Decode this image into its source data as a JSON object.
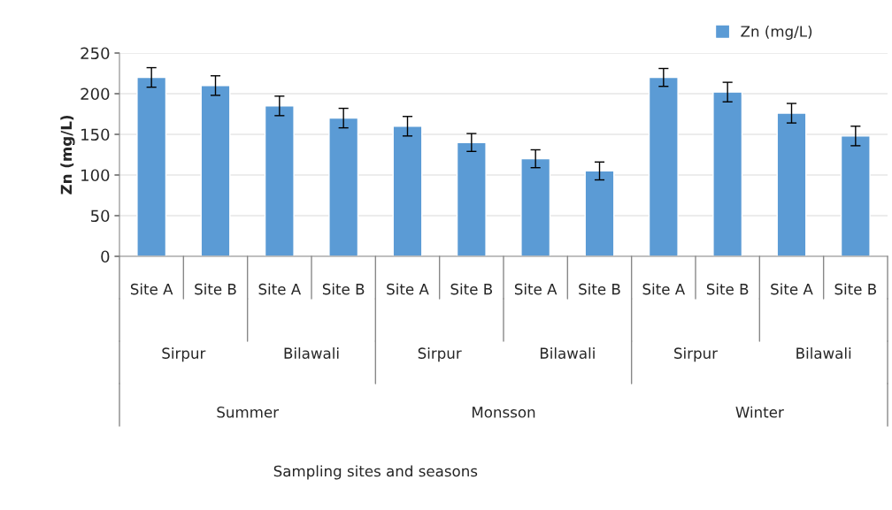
{
  "chart_data": {
    "type": "bar",
    "ylabel": "Zn (mg/L)",
    "categories": [
      "Site A",
      "Site B",
      "Site A",
      "Site B",
      "Site A",
      "Site B",
      "Site A",
      "Site B",
      "Site A",
      "Site B",
      "Site A",
      "Site B"
    ],
    "series": [
      {
        "name": "Zn (mg/L)",
        "color": "#5b9bd5",
        "values": [
          220,
          210,
          185,
          170,
          160,
          140,
          120,
          105,
          220,
          202,
          176,
          148
        ],
        "errors": [
          12,
          12,
          12,
          12,
          12,
          11,
          11,
          11,
          11,
          12,
          12,
          12
        ]
      }
    ],
    "annotations": [
      "Sirpur",
      "Bilawali",
      "Sirpur",
      "Bilawali",
      "Sirpur",
      "Bilawali",
      "Summer",
      "Monsson",
      "Winter",
      "Sampling sites and seasons"
    ],
    "ylim": [
      0,
      250
    ],
    "yticks": [
      0,
      50,
      100,
      150,
      200,
      250
    ],
    "grid": "y",
    "legend": "top right"
  }
}
